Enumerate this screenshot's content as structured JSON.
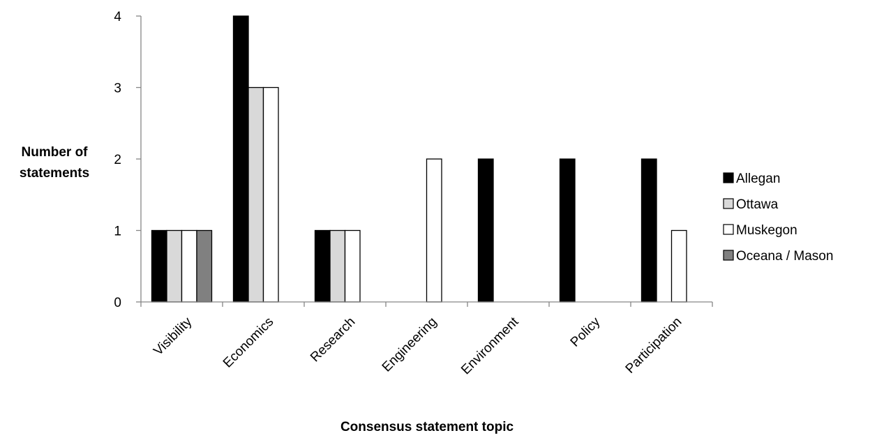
{
  "chart_data": {
    "type": "bar",
    "title": "",
    "xlabel": "Consensus statement topic",
    "ylabel_lines": [
      "Number of",
      "statements"
    ],
    "categories": [
      "Visibility",
      "Economics",
      "Research",
      "Engineering",
      "Environment",
      "Policy",
      "Participation"
    ],
    "series": [
      {
        "name": "Allegan",
        "color": "#000000",
        "values": [
          1,
          4,
          1,
          0,
          2,
          2,
          2
        ]
      },
      {
        "name": "Ottawa",
        "color": "#d9d9d9",
        "values": [
          1,
          3,
          1,
          0,
          0,
          0,
          0
        ]
      },
      {
        "name": "Muskegon",
        "color": "#ffffff",
        "values": [
          1,
          3,
          1,
          2,
          0,
          0,
          1
        ]
      },
      {
        "name": "Oceana / Mason",
        "color": "#808080",
        "values": [
          1,
          0,
          0,
          0,
          0,
          0,
          0
        ]
      }
    ],
    "ylim": [
      0,
      4
    ],
    "yticks": [
      0,
      1,
      2,
      3,
      4
    ],
    "grid": false,
    "legend_position": "right"
  }
}
